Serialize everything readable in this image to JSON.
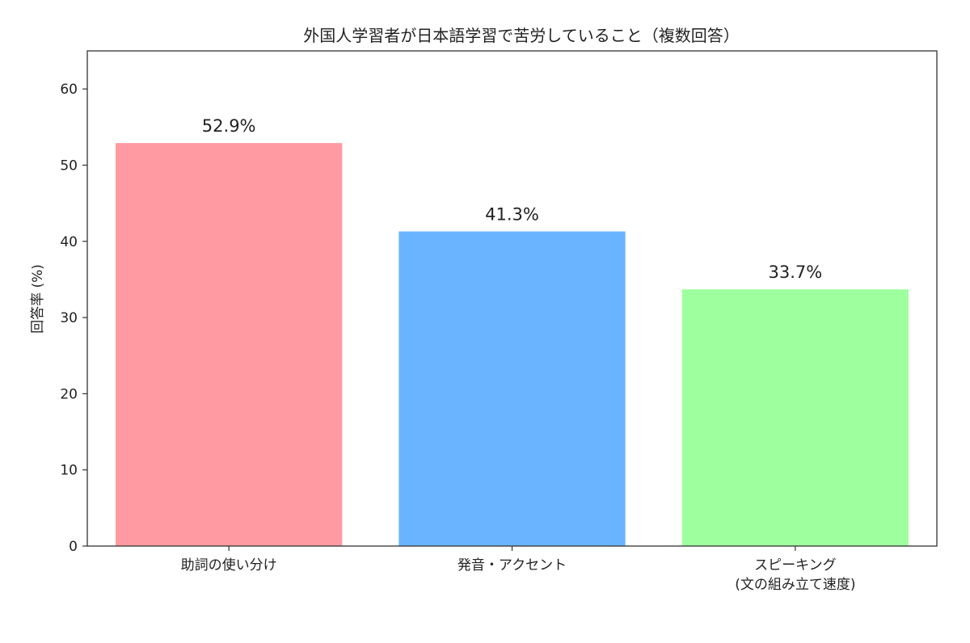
{
  "chart_data": {
    "type": "bar",
    "title": "外国人学習者が日本語学習で苦労していること（複数回答）",
    "xlabel": "",
    "ylabel": "回答率 (%)",
    "ylim": [
      0,
      65
    ],
    "yticks": [
      0,
      10,
      20,
      30,
      40,
      50,
      60
    ],
    "grid": false,
    "categories": [
      [
        "助詞の使い分け"
      ],
      [
        "発音・アクセント"
      ],
      [
        "スピーキング",
        "(文の組み立て速度)"
      ]
    ],
    "values": [
      52.9,
      41.3,
      33.7
    ],
    "data_labels": [
      "52.9%",
      "41.3%",
      "33.7%"
    ],
    "colors": [
      "#ff9aa2",
      "#6ab4ff",
      "#9eff9e"
    ]
  }
}
